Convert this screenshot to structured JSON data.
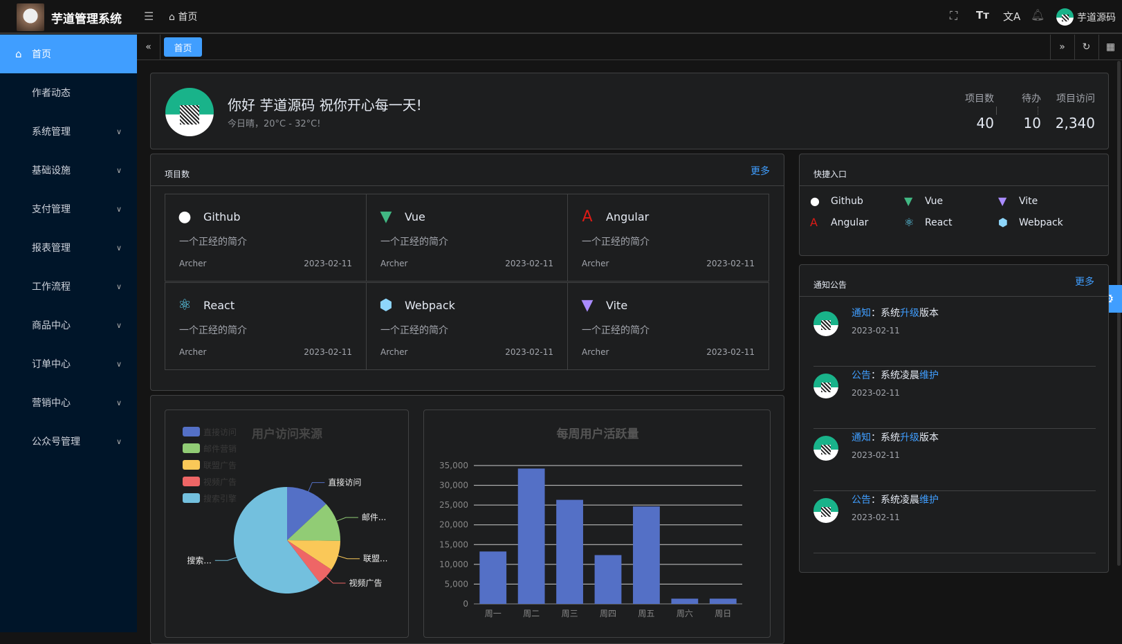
{
  "header": {
    "app_title": "芋道管理系统",
    "breadcrumb": "首页",
    "username": "芋道源码",
    "icons": [
      "menu-fold-icon",
      "home-icon",
      "fullscreen-icon",
      "font-size-icon",
      "translate-icon",
      "bell-icon"
    ]
  },
  "sidebar": {
    "items": [
      {
        "label": "首页",
        "active": true
      },
      {
        "label": "作者动态"
      },
      {
        "label": "系统管理",
        "has_children": true
      },
      {
        "label": "基础设施",
        "has_children": true
      },
      {
        "label": "支付管理",
        "has_children": true
      },
      {
        "label": "报表管理",
        "has_children": true
      },
      {
        "label": "工作流程",
        "has_children": true
      },
      {
        "label": "商品中心",
        "has_children": true
      },
      {
        "label": "订单中心",
        "has_children": true
      },
      {
        "label": "营销中心",
        "has_children": true
      },
      {
        "label": "公众号管理",
        "has_children": true
      }
    ]
  },
  "tabs": {
    "items": [
      "首页"
    ]
  },
  "welcome": {
    "greeting": "你好 芋道源码 祝你开心每一天!",
    "weather": "今日晴，20°C - 32°C!",
    "stats": [
      {
        "label": "项目数",
        "value": "40"
      },
      {
        "label": "待办",
        "value": "10"
      },
      {
        "label": "项目访问",
        "value": "2,340"
      }
    ]
  },
  "projects": {
    "title": "项目数",
    "more": "更多",
    "items": [
      {
        "name": "Github",
        "icon": "github-icon",
        "desc": "一个正经的简介",
        "author": "Archer",
        "date": "2023-02-11"
      },
      {
        "name": "Vue",
        "icon": "vue-icon",
        "desc": "一个正经的简介",
        "author": "Archer",
        "date": "2023-02-11"
      },
      {
        "name": "Angular",
        "icon": "angular-icon",
        "desc": "一个正经的简介",
        "author": "Archer",
        "date": "2023-02-11"
      },
      {
        "name": "React",
        "icon": "react-icon",
        "desc": "一个正经的简介",
        "author": "Archer",
        "date": "2023-02-11"
      },
      {
        "name": "Webpack",
        "icon": "webpack-icon",
        "desc": "一个正经的简介",
        "author": "Archer",
        "date": "2023-02-11"
      },
      {
        "name": "Vite",
        "icon": "vite-icon",
        "desc": "一个正经的简介",
        "author": "Archer",
        "date": "2023-02-11"
      }
    ]
  },
  "shortcuts": {
    "title": "快捷入口",
    "items": [
      {
        "name": "Github"
      },
      {
        "name": "Vue"
      },
      {
        "name": "Vite"
      },
      {
        "name": "Angular"
      },
      {
        "name": "React"
      },
      {
        "name": "Webpack"
      }
    ]
  },
  "notices": {
    "title": "通知公告",
    "more": "更多",
    "items": [
      {
        "type": "通知",
        "sep": "：",
        "pre": "系统",
        "hl": "升级",
        "post": "版本",
        "date": "2023-02-11"
      },
      {
        "type": "公告",
        "sep": "：",
        "pre": "系统凌晨",
        "hl": "维护",
        "post": "",
        "date": "2023-02-11"
      },
      {
        "type": "通知",
        "sep": "：",
        "pre": "系统",
        "hl": "升级",
        "post": "版本",
        "date": "2023-02-11"
      },
      {
        "type": "公告",
        "sep": "：",
        "pre": "系统凌晨",
        "hl": "维护",
        "post": "",
        "date": "2023-02-11"
      }
    ]
  },
  "chart_data": [
    {
      "type": "pie",
      "title": "用户访问来源",
      "legend_position": "top-left",
      "slices": [
        {
          "name": "直接访问",
          "label": "直接访问",
          "value": 335,
          "color": "#5470c6"
        },
        {
          "name": "邮件营销",
          "label": "邮件...",
          "value": 310,
          "color": "#91cc75"
        },
        {
          "name": "联盟广告",
          "label": "联盟...",
          "value": 234,
          "color": "#fac858"
        },
        {
          "name": "视频广告",
          "label": "视频广告",
          "value": 135,
          "color": "#ee6666"
        },
        {
          "name": "搜索引擎",
          "label": "搜索...",
          "value": 1548,
          "color": "#73c0de"
        }
      ]
    },
    {
      "type": "bar",
      "title": "每周用户活跃量",
      "categories": [
        "周一",
        "周二",
        "周三",
        "周四",
        "周五",
        "周六",
        "周日"
      ],
      "values": [
        13253,
        34235,
        26321,
        12340,
        24643,
        1322,
        1324
      ],
      "ylim": [
        0,
        35000
      ],
      "yticks": [
        "0",
        "5,000",
        "10,000",
        "15,000",
        "20,000",
        "25,000",
        "30,000",
        "35,000"
      ],
      "grid": true,
      "color": "#5470c6"
    }
  ]
}
